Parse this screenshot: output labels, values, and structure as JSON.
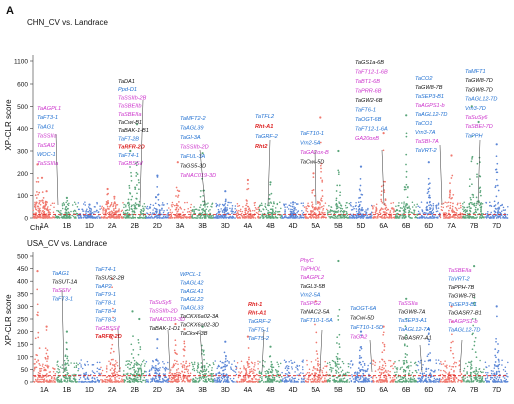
{
  "figure": {
    "panel_letter": "A",
    "ylabel": "XP-CLR score",
    "xlabel": "Chr"
  },
  "colors": {
    "A": "#f0786e",
    "B": "#5aa57a",
    "D": "#5b86d6",
    "threshold": "#e02020",
    "blue": "#1f6fd1",
    "magenta": "#cc33cc",
    "black": "#111111",
    "red": "#dd2222"
  },
  "chart_data": [
    {
      "type": "scatter",
      "title": "CHN_CV vs. Landrace",
      "ylabel": "XP-CLR score",
      "xlabel": "Chr",
      "yticks": [
        "0",
        "100",
        "200",
        "300",
        "400",
        "500",
        "600",
        "1100"
      ],
      "chromosomes": [
        "1A",
        "1B",
        "1D",
        "2A",
        "2B",
        "2D",
        "3A",
        "3B",
        "3D",
        "4A",
        "4B",
        "4D",
        "5A",
        "5B",
        "5D",
        "6A",
        "6B",
        "6D",
        "7A",
        "7B",
        "7D"
      ],
      "threshold": 15,
      "peaks": [
        {
          "chr": "1A",
          "pos": 0.2,
          "y": 240
        },
        {
          "chr": "1A",
          "pos": 0.4,
          "y": 180
        },
        {
          "chr": "1A",
          "pos": 0.6,
          "y": 120
        },
        {
          "chr": "1B",
          "pos": 0.5,
          "y": 90
        },
        {
          "chr": "1D",
          "pos": 0.5,
          "y": 60
        },
        {
          "chr": "2A",
          "pos": 0.3,
          "y": 130
        },
        {
          "chr": "2A",
          "pos": 0.6,
          "y": 95
        },
        {
          "chr": "2B",
          "pos": 0.3,
          "y": 300
        },
        {
          "chr": "2B",
          "pos": 0.6,
          "y": 420
        },
        {
          "chr": "2D",
          "pos": 0.5,
          "y": 190
        },
        {
          "chr": "3A",
          "pos": 0.4,
          "y": 250
        },
        {
          "chr": "3B",
          "pos": 0.5,
          "y": 290
        },
        {
          "chr": "3D",
          "pos": 0.5,
          "y": 120
        },
        {
          "chr": "4A",
          "pos": 0.5,
          "y": 170
        },
        {
          "chr": "4B",
          "pos": 0.5,
          "y": 160
        },
        {
          "chr": "4D",
          "pos": 0.5,
          "y": 70
        },
        {
          "chr": "5A",
          "pos": 0.4,
          "y": 200
        },
        {
          "chr": "5A",
          "pos": 0.7,
          "y": 450
        },
        {
          "chr": "5B",
          "pos": 0.5,
          "y": 300
        },
        {
          "chr": "5D",
          "pos": 0.5,
          "y": 230
        },
        {
          "chr": "6A",
          "pos": 0.5,
          "y": 380
        },
        {
          "chr": "6B",
          "pos": 0.5,
          "y": 460
        },
        {
          "chr": "6D",
          "pos": 0.5,
          "y": 250
        },
        {
          "chr": "7A",
          "pos": 0.5,
          "y": 280
        },
        {
          "chr": "7B",
          "pos": 0.4,
          "y": 500
        },
        {
          "chr": "7B",
          "pos": 0.7,
          "y": 430
        },
        {
          "chr": "7D",
          "pos": 0.5,
          "y": 330
        }
      ]
    },
    {
      "type": "scatter",
      "title": "USA_CV vs. Landrace",
      "ylabel": "XP-CLR score",
      "xlabel": "Chr",
      "yticks": [
        "0",
        "50",
        "100",
        "150",
        "200",
        "250",
        "300",
        "350",
        "400",
        "450",
        "500"
      ],
      "ylim": [
        0,
        500
      ],
      "chromosomes": [
        "1A",
        "1B",
        "1D",
        "2A",
        "2B",
        "2D",
        "3A",
        "3B",
        "3D",
        "4A",
        "4B",
        "4D",
        "5A",
        "5B",
        "5D",
        "6A",
        "6B",
        "6D",
        "7A",
        "7B",
        "7D"
      ],
      "threshold": 25,
      "peaks": [
        {
          "chr": "1A",
          "pos": 0.2,
          "y": 440
        },
        {
          "chr": "1A",
          "pos": 0.6,
          "y": 220
        },
        {
          "chr": "1B",
          "pos": 0.5,
          "y": 200
        },
        {
          "chr": "2A",
          "pos": 0.5,
          "y": 410
        },
        {
          "chr": "2B",
          "pos": 0.4,
          "y": 280
        },
        {
          "chr": "2B",
          "pos": 0.7,
          "y": 250
        },
        {
          "chr": "2D",
          "pos": 0.5,
          "y": 170
        },
        {
          "chr": "3A",
          "pos": 0.3,
          "y": 230
        },
        {
          "chr": "3A",
          "pos": 0.7,
          "y": 210
        },
        {
          "chr": "3B",
          "pos": 0.5,
          "y": 220
        },
        {
          "chr": "3D",
          "pos": 0.5,
          "y": 160
        },
        {
          "chr": "4A",
          "pos": 0.5,
          "y": 180
        },
        {
          "chr": "4B",
          "pos": 0.5,
          "y": 140
        },
        {
          "chr": "5A",
          "pos": 0.5,
          "y": 320
        },
        {
          "chr": "5B",
          "pos": 0.5,
          "y": 480
        },
        {
          "chr": "5D",
          "pos": 0.5,
          "y": 200
        },
        {
          "chr": "6A",
          "pos": 0.5,
          "y": 220
        },
        {
          "chr": "6B",
          "pos": 0.5,
          "y": 330
        },
        {
          "chr": "6D",
          "pos": 0.5,
          "y": 210
        },
        {
          "chr": "7A",
          "pos": 0.5,
          "y": 300
        },
        {
          "chr": "7B",
          "pos": 0.5,
          "y": 460
        },
        {
          "chr": "7D",
          "pos": 0.5,
          "y": 300
        }
      ]
    }
  ],
  "panel1_labels": {
    "col1a": [
      {
        "text": "TaAGPL1",
        "color": "magenta"
      },
      {
        "text": "TaFT3-1",
        "color": "blue"
      },
      {
        "text": "TaAG1",
        "color": "blue"
      },
      {
        "text": "TaSSIIa",
        "color": "magenta"
      },
      {
        "text": "TaSAI2",
        "color": "magenta"
      },
      {
        "text": "WOC-1",
        "color": "blue"
      },
      {
        "text": "TaSSIIIa",
        "color": "magenta"
      }
    ],
    "col2b": [
      {
        "text": "TaDA1",
        "color": "black"
      },
      {
        "text": "Ppd-D1",
        "color": "blue"
      },
      {
        "text": "TaSSIIb-2B",
        "color": "magenta"
      },
      {
        "text": "TaSBEIIb",
        "color": "magenta"
      },
      {
        "text": "TaSBEIIa",
        "color": "magenta"
      },
      {
        "text": "TaCwi-B1",
        "color": "black"
      },
      {
        "text": "TaBAK-1-B1",
        "color": "black"
      },
      {
        "text": "TaFT-2B",
        "color": "blue"
      },
      {
        "text": "TaRFR-2D",
        "color": "red"
      },
      {
        "text": "TaFT4-1",
        "color": "blue"
      },
      {
        "text": "TaGBSSⅡ",
        "color": "magenta"
      }
    ],
    "col3": [
      {
        "text": "TaMFT2-2",
        "color": "blue"
      },
      {
        "text": "TaAGL39",
        "color": "blue"
      },
      {
        "text": "TaGI-3A",
        "color": "blue"
      },
      {
        "text": "TaSSIIb-2D",
        "color": "magenta"
      },
      {
        "text": "TaFUL-3A",
        "color": "blue"
      },
      {
        "text": "TaGS5-3D",
        "color": "black"
      },
      {
        "text": "TaNAC019-3D",
        "color": "magenta"
      }
    ],
    "col4": [
      {
        "text": "TaTFL2",
        "color": "blue"
      },
      {
        "text": "Rht-A1",
        "color": "red"
      },
      {
        "text": "TaGRF-2",
        "color": "blue"
      },
      {
        "text": "Rht2",
        "color": "red"
      }
    ],
    "col5": [
      {
        "text": "TaFT10-1",
        "color": "blue"
      },
      {
        "text": "Vrn2-5A",
        "color": "blue"
      },
      {
        "text": "TaGA2ox-B",
        "color": "magenta"
      },
      {
        "text": "TaCwi-5D",
        "color": "black"
      }
    ],
    "col6": [
      {
        "text": "TaGS1a-6B",
        "color": "black"
      },
      {
        "text": "TaFT12-1-6B",
        "color": "magenta"
      },
      {
        "text": "TaBT1-6B",
        "color": "magenta"
      },
      {
        "text": "TaPRR-6B",
        "color": "magenta"
      },
      {
        "text": "TaGW2-6B",
        "color": "black"
      },
      {
        "text": "TaFT6-1",
        "color": "blue"
      },
      {
        "text": "TaOGT-6B",
        "color": "blue"
      },
      {
        "text": "TaFT12-1-6A",
        "color": "blue"
      },
      {
        "text": "GA20oxB",
        "color": "magenta"
      }
    ],
    "col7": [
      {
        "text": "TaCO2",
        "color": "blue"
      },
      {
        "text": "TaGW8-7B",
        "color": "black"
      },
      {
        "text": "TaSEP3-B1",
        "color": "blue"
      },
      {
        "text": "TaAGPS1-b",
        "color": "magenta"
      },
      {
        "text": "TaAGL12-7D",
        "color": "blue"
      },
      {
        "text": "TaCO1",
        "color": "blue"
      },
      {
        "text": "Vrn3-7A",
        "color": "blue"
      },
      {
        "text": "TaSBI-7A",
        "color": "magenta"
      },
      {
        "text": "TaVRT-2",
        "color": "blue"
      }
    ],
    "col7d": [
      {
        "text": "TaMFT1",
        "color": "blue"
      },
      {
        "text": "TaGW8-7D",
        "color": "black"
      },
      {
        "text": "TaGW8-7D",
        "color": "black"
      },
      {
        "text": "TaAGL12-7D",
        "color": "blue"
      },
      {
        "text": "Vrn3-7D",
        "color": "blue"
      },
      {
        "text": "TaSuSy6",
        "color": "magenta"
      },
      {
        "text": "TaSBEI-7D",
        "color": "magenta"
      },
      {
        "text": "TaPPH",
        "color": "blue"
      }
    ]
  },
  "panel2_labels": {
    "col1a": [
      {
        "text": "TaAG1",
        "color": "blue"
      },
      {
        "text": "TaSUT-1A",
        "color": "black"
      },
      {
        "text": "TaSSIV",
        "color": "magenta"
      },
      {
        "text": "TaFT3-1",
        "color": "blue"
      }
    ],
    "col2a": [
      {
        "text": "TaFT4-1",
        "color": "blue"
      },
      {
        "text": "TaSUS2-2B",
        "color": "black"
      },
      {
        "text": "TaAP2",
        "color": "blue"
      },
      {
        "text": "TaFT9-1",
        "color": "blue"
      },
      {
        "text": "TaFT8-1",
        "color": "blue"
      },
      {
        "text": "TaFT8-4",
        "color": "blue"
      },
      {
        "text": "TaFT8-3",
        "color": "blue"
      },
      {
        "text": "TaGBSSⅡ",
        "color": "magenta"
      },
      {
        "text": "TaRFR-2D",
        "color": "red"
      }
    ],
    "col2b": [
      {
        "text": "TaSuSy5",
        "color": "magenta"
      },
      {
        "text": "TaSSIIb-2D",
        "color": "magenta"
      },
      {
        "text": "TaNAC019-3D",
        "color": "magenta"
      },
      {
        "text": "TaBAK-1-D1",
        "color": "black"
      }
    ],
    "col3": [
      {
        "text": "WPCL-1",
        "color": "blue"
      },
      {
        "text": "TaAGL42",
        "color": "blue"
      },
      {
        "text": "TaAGL41",
        "color": "blue"
      },
      {
        "text": "TaAGL22",
        "color": "blue"
      },
      {
        "text": "TaAGL33",
        "color": "blue"
      },
      {
        "text": "TaCKX6a02-3A",
        "color": "black"
      },
      {
        "text": "TaCKX6a02-3D",
        "color": "black"
      },
      {
        "text": "TaCkx4-3B",
        "color": "black"
      }
    ],
    "col4": [
      {
        "text": "Rht-1",
        "color": "red"
      },
      {
        "text": "Rht-A1",
        "color": "red"
      },
      {
        "text": "TaGRF-2",
        "color": "blue"
      },
      {
        "text": "TaFT5-1",
        "color": "blue"
      },
      {
        "text": "TaFT5-2",
        "color": "blue"
      }
    ],
    "col5": [
      {
        "text": "PhyC",
        "color": "magenta"
      },
      {
        "text": "TaPHOL",
        "color": "magenta"
      },
      {
        "text": "TaAGPL2",
        "color": "magenta"
      },
      {
        "text": "TaGL3-5B",
        "color": "black"
      },
      {
        "text": "Vrn2-5A",
        "color": "blue"
      },
      {
        "text": "TaSPG2",
        "color": "magenta"
      },
      {
        "text": "TaNAC2-5A",
        "color": "black"
      },
      {
        "text": "TaFT10-1-5A",
        "color": "blue"
      }
    ],
    "col6": [
      {
        "text": "TaOGT-6A",
        "color": "blue"
      },
      {
        "text": "TaCwi-5D",
        "color": "black"
      },
      {
        "text": "TaFT10-1-5D",
        "color": "blue"
      },
      {
        "text": "TaGA2",
        "color": "magenta"
      }
    ],
    "col7a": [
      {
        "text": "TaSSIIa",
        "color": "magenta"
      },
      {
        "text": "TaGW8-7A",
        "color": "black"
      },
      {
        "text": "TaSEP3-A1",
        "color": "blue"
      },
      {
        "text": "TaAGL12-7A",
        "color": "blue"
      },
      {
        "text": "TaGASR7-A1",
        "color": "black"
      }
    ],
    "col7b": [
      {
        "text": "TaSBEIIa",
        "color": "magenta"
      },
      {
        "text": "TaVRT-2",
        "color": "blue"
      },
      {
        "text": "TaPPH-7B",
        "color": "black"
      },
      {
        "text": "TaGW8-7B",
        "color": "black"
      },
      {
        "text": "TaSEP3-B1",
        "color": "blue"
      },
      {
        "text": "TaGASR7-B1",
        "color": "black"
      },
      {
        "text": "TaAGPS1-b",
        "color": "magenta"
      },
      {
        "text": "TaAGL12-7D",
        "color": "blue"
      }
    ]
  }
}
